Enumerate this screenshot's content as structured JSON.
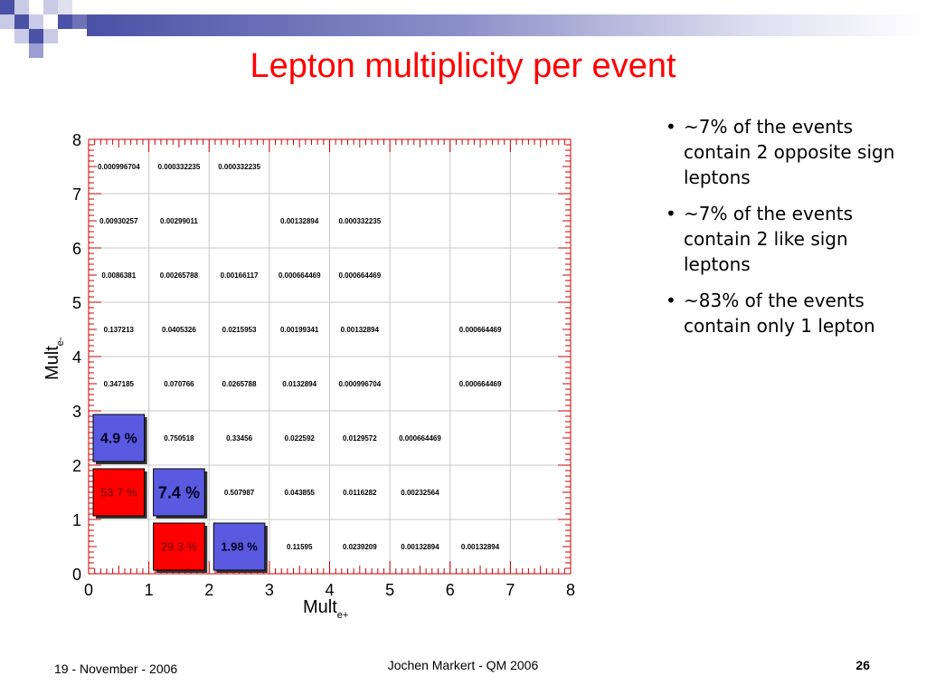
{
  "slide": {
    "title": "Lepton multiplicity per event",
    "bullets": [
      "~7% of the events contain 2 opposite sign leptons",
      "~7% of the events contain 2 like sign leptons",
      "~83% of the events contain only 1 lepton"
    ],
    "bullet_symbol": "•",
    "footer": {
      "date": "19 - November - 2006",
      "center": "Jochen Markert - QM 2006",
      "page": "26"
    },
    "colors": {
      "title": "#ff0000",
      "header_dark": "#4b51a6",
      "header_light": "#9a9ed2",
      "box_red": "#ff0000",
      "box_blue": "#5a5ae0",
      "grid": "#c8c8c8",
      "axis_frame": "#cc0000"
    }
  },
  "chart_data": {
    "type": "table",
    "xlabel": "Mult",
    "xlabel_sub": "e+",
    "ylabel": "Mult",
    "ylabel_sub": "e-",
    "xlim": [
      0,
      8
    ],
    "ylim": [
      0,
      8
    ],
    "x_ticks": [
      "0",
      "1",
      "2",
      "3",
      "4",
      "5",
      "6",
      "7",
      "8"
    ],
    "y_ticks": [
      "0",
      "1",
      "2",
      "3",
      "4",
      "5",
      "6",
      "7",
      "8"
    ],
    "grid": true,
    "cells": [
      {
        "x": 0,
        "y": 7,
        "text": "0.000996704"
      },
      {
        "x": 1,
        "y": 7,
        "text": "0.000332235"
      },
      {
        "x": 2,
        "y": 7,
        "text": "0.000332235"
      },
      {
        "x": 0,
        "y": 6,
        "text": "0.00930257"
      },
      {
        "x": 1,
        "y": 6,
        "text": "0.00299011"
      },
      {
        "x": 3,
        "y": 6,
        "text": "0.00132894"
      },
      {
        "x": 4,
        "y": 6,
        "text": "0.000332235"
      },
      {
        "x": 0,
        "y": 5,
        "text": "0.0086381"
      },
      {
        "x": 1,
        "y": 5,
        "text": "0.00265788"
      },
      {
        "x": 2,
        "y": 5,
        "text": "0.00166117"
      },
      {
        "x": 3,
        "y": 5,
        "text": "0.000664469"
      },
      {
        "x": 4,
        "y": 5,
        "text": "0.000664469"
      },
      {
        "x": 0,
        "y": 4,
        "text": "0.137213"
      },
      {
        "x": 1,
        "y": 4,
        "text": "0.0405326"
      },
      {
        "x": 2,
        "y": 4,
        "text": "0.0215953"
      },
      {
        "x": 3,
        "y": 4,
        "text": "0.00199341"
      },
      {
        "x": 4,
        "y": 4,
        "text": "0.00132894"
      },
      {
        "x": 6,
        "y": 4,
        "text": "0.000664469"
      },
      {
        "x": 0,
        "y": 3,
        "text": "0.347185"
      },
      {
        "x": 1,
        "y": 3,
        "text": "0.070766"
      },
      {
        "x": 2,
        "y": 3,
        "text": "0.0265788"
      },
      {
        "x": 3,
        "y": 3,
        "text": "0.0132894"
      },
      {
        "x": 4,
        "y": 3,
        "text": "0.000996704"
      },
      {
        "x": 6,
        "y": 3,
        "text": "0.000664469"
      },
      {
        "x": 0,
        "y": 2,
        "text": "4.9 %",
        "box": "blue",
        "size": "large"
      },
      {
        "x": 1,
        "y": 2,
        "text": "0.750518"
      },
      {
        "x": 2,
        "y": 2,
        "text": "0.33456"
      },
      {
        "x": 3,
        "y": 2,
        "text": "0.022592"
      },
      {
        "x": 4,
        "y": 2,
        "text": "0.0129572"
      },
      {
        "x": 5,
        "y": 2,
        "text": "0.000664469"
      },
      {
        "x": 0,
        "y": 1,
        "text": "53.7 %",
        "box": "red",
        "size": "medium"
      },
      {
        "x": 1,
        "y": 1,
        "text": "7.4 %",
        "box": "blue",
        "size": "xlarge"
      },
      {
        "x": 2,
        "y": 1,
        "text": "0.507987"
      },
      {
        "x": 3,
        "y": 1,
        "text": "0.043855"
      },
      {
        "x": 4,
        "y": 1,
        "text": "0.0116282"
      },
      {
        "x": 5,
        "y": 1,
        "text": "0.00232564"
      },
      {
        "x": 1,
        "y": 0,
        "text": "29.3 %",
        "box": "red",
        "size": "medium"
      },
      {
        "x": 2,
        "y": 0,
        "text": "1.98 %",
        "box": "blue",
        "size": "medium"
      },
      {
        "x": 3,
        "y": 0,
        "text": "0.11595"
      },
      {
        "x": 4,
        "y": 0,
        "text": "0.0239209"
      },
      {
        "x": 5,
        "y": 0,
        "text": "0.00132894"
      },
      {
        "x": 6,
        "y": 0,
        "text": "0.00132894"
      }
    ]
  }
}
